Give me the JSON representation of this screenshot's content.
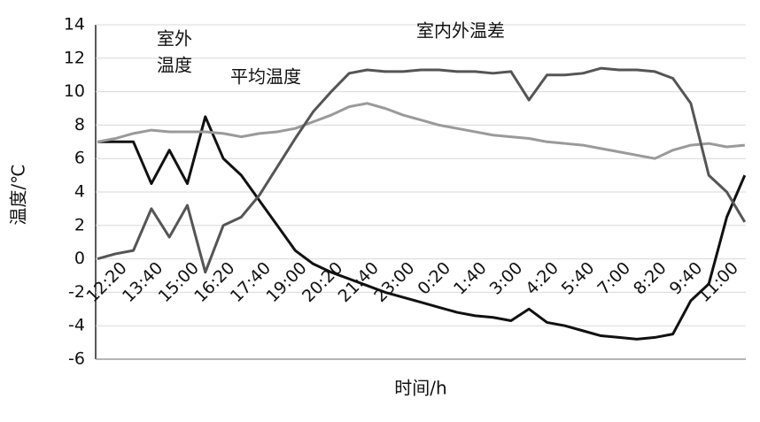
{
  "chart_data": {
    "type": "line",
    "xlabel": "时间/h",
    "ylabel": "温度/℃",
    "categories": [
      null,
      "12:20",
      null,
      "13:40",
      null,
      "15:00",
      null,
      "16:20",
      null,
      "17:40",
      null,
      "19:00",
      null,
      "20:20",
      null,
      "21:40",
      null,
      "23:00",
      null,
      "0:20",
      null,
      "1:40",
      null,
      "3:00",
      null,
      "4:20",
      null,
      "5:40",
      null,
      "7:00",
      null,
      "8:20",
      null,
      "9:40",
      null,
      "11:00",
      null
    ],
    "series": [
      {
        "name": "室外温度",
        "color": "#111111",
        "values": [
          7,
          7,
          7,
          4.5,
          6.5,
          4.5,
          8.5,
          6,
          5,
          3.5,
          2,
          0.5,
          -0.3,
          -0.8,
          -1.2,
          -1.6,
          -2,
          -2.3,
          -2.6,
          -2.9,
          -3.2,
          -3.4,
          -3.5,
          -3.7,
          -3,
          -3.8,
          -4,
          -4.3,
          -4.6,
          -4.7,
          -4.8,
          -4.7,
          -4.5,
          -2.5,
          -1.5,
          2.5,
          5
        ]
      },
      {
        "name": "平均温度",
        "color": "#9a9a9a",
        "values": [
          7,
          7.2,
          7.5,
          7.7,
          7.6,
          7.6,
          7.6,
          7.5,
          7.3,
          7.5,
          7.6,
          7.8,
          8.2,
          8.6,
          9.1,
          9.3,
          9,
          8.6,
          8.3,
          8,
          7.8,
          7.6,
          7.4,
          7.3,
          7.2,
          7,
          6.9,
          6.8,
          6.6,
          6.4,
          6.2,
          6,
          6.5,
          6.8,
          6.9,
          6.7,
          6.8
        ]
      },
      {
        "name": "室内外温差",
        "color": "#555555",
        "values": [
          0,
          0.3,
          0.5,
          3,
          1.3,
          3.2,
          -0.8,
          2,
          2.5,
          3.8,
          5.5,
          7.2,
          8.8,
          10,
          11.1,
          11.3,
          11.2,
          11.2,
          11.3,
          11.3,
          11.2,
          11.2,
          11.1,
          11.2,
          9.5,
          11,
          11,
          11.1,
          11.4,
          11.3,
          11.3,
          11.2,
          10.8,
          9.3,
          5,
          4,
          2.2
        ]
      }
    ],
    "ylim": [
      -6,
      14
    ],
    "yticks": [
      -6,
      -4,
      -2,
      0,
      2,
      4,
      6,
      8,
      10,
      12,
      14
    ],
    "grid": true,
    "annotations": [
      "室外",
      "温度",
      "平均温度",
      "室内外温差"
    ]
  }
}
